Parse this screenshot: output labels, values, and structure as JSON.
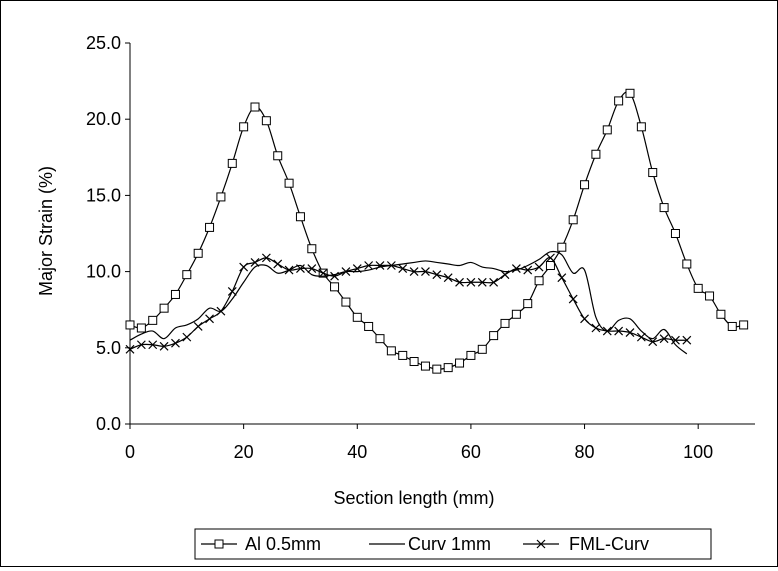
{
  "chart_data": {
    "type": "line",
    "title": "",
    "xlabel": "Section length (mm)",
    "ylabel": "Major Strain (%)",
    "xlim": [
      0,
      110
    ],
    "ylim": [
      0,
      25
    ],
    "x_ticks": [
      "0",
      "20",
      "40",
      "60",
      "80",
      "100"
    ],
    "y_ticks": [
      "0.0",
      "5.0",
      "10.0",
      "15.0",
      "20.0",
      "25.0"
    ],
    "grid": false,
    "legend_position": "bottom",
    "series": [
      {
        "name": "Al 0.5mm",
        "marker": "square",
        "color": "#000000",
        "x": [
          0,
          2,
          4,
          6,
          8,
          10,
          12,
          14,
          16,
          18,
          20,
          22,
          24,
          26,
          28,
          30,
          32,
          34,
          36,
          38,
          40,
          42,
          44,
          46,
          48,
          50,
          52,
          54,
          56,
          58,
          60,
          62,
          64,
          66,
          68,
          70,
          72,
          74,
          76,
          78,
          80,
          82,
          84,
          86,
          88,
          90,
          92,
          94,
          96,
          98,
          100,
          102,
          104,
          106,
          108
        ],
        "y": [
          6.5,
          6.3,
          6.8,
          7.6,
          8.5,
          9.8,
          11.2,
          12.9,
          14.9,
          17.1,
          19.5,
          20.8,
          19.9,
          17.6,
          15.8,
          13.6,
          11.5,
          9.9,
          9.0,
          8.0,
          7.0,
          6.4,
          5.6,
          4.8,
          4.5,
          4.1,
          3.8,
          3.6,
          3.7,
          4.0,
          4.5,
          4.9,
          5.8,
          6.6,
          7.2,
          7.9,
          9.4,
          10.4,
          11.6,
          13.4,
          15.7,
          17.7,
          19.3,
          21.2,
          21.7,
          19.5,
          16.5,
          14.2,
          12.5,
          10.5,
          8.9,
          8.4,
          7.2,
          6.4,
          6.5
        ]
      },
      {
        "name": "Curv 1mm",
        "marker": "none",
        "color": "#000000",
        "x": [
          0,
          2,
          4,
          6,
          8,
          10,
          12,
          14,
          16,
          18,
          20,
          22,
          24,
          26,
          28,
          30,
          32,
          34,
          36,
          38,
          40,
          42,
          44,
          46,
          48,
          50,
          52,
          54,
          56,
          58,
          60,
          62,
          64,
          66,
          68,
          70,
          72,
          74,
          76,
          78,
          80,
          82,
          84,
          86,
          88,
          90,
          92,
          94,
          96,
          98
        ],
        "y": [
          5.5,
          5.9,
          6.1,
          5.6,
          6.3,
          6.5,
          6.9,
          7.6,
          7.4,
          8.2,
          9.3,
          10.3,
          10.4,
          9.9,
          10.1,
          10.4,
          9.8,
          9.7,
          9.8,
          10.0,
          10.0,
          10.1,
          10.3,
          10.4,
          10.5,
          10.6,
          10.7,
          10.6,
          10.5,
          10.4,
          10.6,
          10.3,
          10.2,
          10.0,
          10.1,
          10.4,
          10.8,
          11.3,
          11.1,
          9.9,
          10.1,
          7.0,
          6.1,
          6.8,
          6.9,
          6.1,
          5.6,
          6.2,
          5.2,
          4.6
        ]
      },
      {
        "name": "FML-Curv",
        "marker": "x",
        "color": "#000000",
        "x": [
          0,
          2,
          4,
          6,
          8,
          10,
          12,
          14,
          16,
          18,
          20,
          22,
          24,
          26,
          28,
          30,
          32,
          34,
          36,
          38,
          40,
          42,
          44,
          46,
          48,
          50,
          52,
          54,
          56,
          58,
          60,
          62,
          64,
          66,
          68,
          70,
          72,
          74,
          76,
          78,
          80,
          82,
          84,
          86,
          88,
          90,
          92,
          94,
          96,
          98
        ],
        "y": [
          4.9,
          5.2,
          5.2,
          5.1,
          5.3,
          5.7,
          6.4,
          6.9,
          7.4,
          8.7,
          10.3,
          10.6,
          10.9,
          10.5,
          10.1,
          10.2,
          10.2,
          9.9,
          9.7,
          10.0,
          10.2,
          10.4,
          10.4,
          10.4,
          10.2,
          10.0,
          10.0,
          9.8,
          9.6,
          9.3,
          9.3,
          9.3,
          9.3,
          9.8,
          10.2,
          10.1,
          10.3,
          10.9,
          9.6,
          8.2,
          6.9,
          6.3,
          6.1,
          6.1,
          6.0,
          5.7,
          5.4,
          5.6,
          5.5,
          5.5
        ]
      }
    ]
  }
}
